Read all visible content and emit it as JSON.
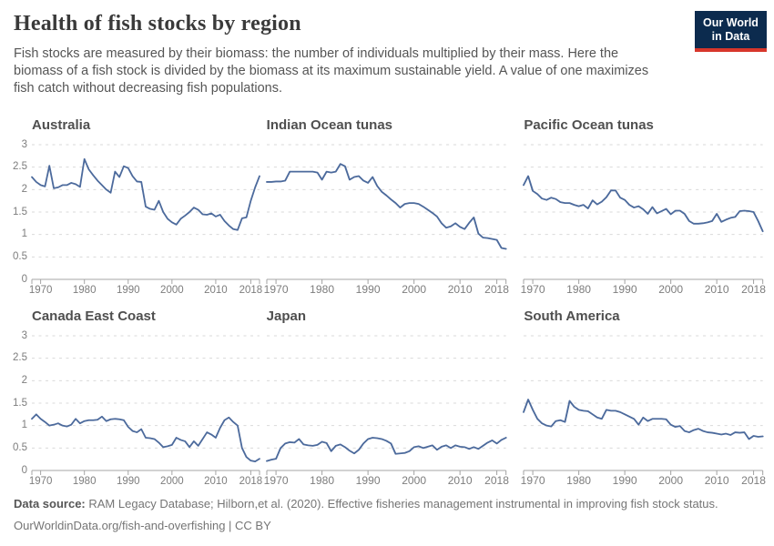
{
  "header": {
    "title": "Health of fish stocks by region",
    "subtitle": "Fish stocks are measured by their biomass: the number of individuals multiplied by their mass. Here the biomass of a fish stock is divided by the biomass at its maximum sustainable yield. A value of one maximizes fish catch without decreasing fish populations.",
    "logo": {
      "line1": "Our World",
      "line2": "in Data"
    }
  },
  "footer": {
    "source_label": "Data source:",
    "source_text": "RAM Legacy Database; Hilborn,et al. (2020). Effective fisheries management instrumental in improving fish stock status.",
    "link": "OurWorldinData.org/fish-and-overfishing",
    "license": "| CC BY"
  },
  "colors": {
    "line": "#4c6a9c",
    "grid": "#d9d9d9",
    "axis": "#a5a5a5",
    "tick_label": "#7d7d7d",
    "logo_bg": "#0c2b4e",
    "logo_accent": "#d7362b"
  },
  "chart_data": [
    {
      "type": "line",
      "title": "Australia",
      "x_start": 1968,
      "x_end": 2020,
      "x_step": 1,
      "xticks": [
        1970,
        1980,
        1990,
        2000,
        2010,
        2018
      ],
      "yticks": [
        0,
        0.5,
        1,
        1.5,
        2,
        2.5,
        3
      ],
      "ylim": [
        0,
        3
      ],
      "show_y_labels": true,
      "grid": true,
      "values": [
        2.28,
        2.17,
        2.1,
        2.07,
        2.53,
        2.03,
        2.05,
        2.1,
        2.1,
        2.15,
        2.12,
        2.06,
        2.68,
        2.45,
        2.32,
        2.2,
        2.1,
        2.0,
        1.93,
        2.4,
        2.28,
        2.52,
        2.48,
        2.3,
        2.18,
        2.17,
        1.62,
        1.57,
        1.55,
        1.75,
        1.5,
        1.35,
        1.27,
        1.22,
        1.35,
        1.42,
        1.5,
        1.6,
        1.55,
        1.45,
        1.44,
        1.47,
        1.4,
        1.44,
        1.3,
        1.2,
        1.12,
        1.1,
        1.36,
        1.38,
        1.75,
        2.05,
        2.3
      ]
    },
    {
      "type": "line",
      "title": "Indian Ocean tunas",
      "x_start": 1968,
      "x_end": 2020,
      "x_step": 1,
      "xticks": [
        1970,
        1980,
        1990,
        2000,
        2010,
        2018
      ],
      "yticks": [
        0,
        0.5,
        1,
        1.5,
        2,
        2.5,
        3
      ],
      "ylim": [
        0,
        3
      ],
      "show_y_labels": false,
      "grid": true,
      "values": [
        2.17,
        2.17,
        2.18,
        2.18,
        2.2,
        2.4,
        2.4,
        2.4,
        2.4,
        2.4,
        2.4,
        2.38,
        2.22,
        2.4,
        2.38,
        2.4,
        2.57,
        2.52,
        2.22,
        2.28,
        2.3,
        2.2,
        2.15,
        2.28,
        2.08,
        1.95,
        1.87,
        1.78,
        1.7,
        1.6,
        1.68,
        1.7,
        1.7,
        1.68,
        1.62,
        1.55,
        1.48,
        1.4,
        1.25,
        1.15,
        1.18,
        1.25,
        1.17,
        1.12,
        1.26,
        1.38,
        1.02,
        0.93,
        0.92,
        0.9,
        0.88,
        0.7,
        0.68
      ]
    },
    {
      "type": "line",
      "title": "Pacific Ocean tunas",
      "x_start": 1968,
      "x_end": 2020,
      "x_step": 1,
      "xticks": [
        1970,
        1980,
        1990,
        2000,
        2010,
        2018
      ],
      "yticks": [
        0,
        0.5,
        1,
        1.5,
        2,
        2.5,
        3
      ],
      "ylim": [
        0,
        3
      ],
      "show_y_labels": false,
      "grid": true,
      "values": [
        2.1,
        2.3,
        1.97,
        1.9,
        1.8,
        1.77,
        1.82,
        1.79,
        1.72,
        1.7,
        1.7,
        1.66,
        1.63,
        1.66,
        1.58,
        1.76,
        1.67,
        1.73,
        1.83,
        1.98,
        1.98,
        1.82,
        1.77,
        1.66,
        1.6,
        1.63,
        1.56,
        1.46,
        1.61,
        1.47,
        1.52,
        1.57,
        1.45,
        1.53,
        1.53,
        1.46,
        1.3,
        1.24,
        1.24,
        1.25,
        1.27,
        1.3,
        1.46,
        1.28,
        1.33,
        1.37,
        1.39,
        1.52,
        1.53,
        1.52,
        1.5,
        1.3,
        1.07
      ]
    },
    {
      "type": "line",
      "title": "Canada East Coast",
      "x_start": 1968,
      "x_end": 2020,
      "x_step": 1,
      "xticks": [
        1970,
        1980,
        1990,
        2000,
        2010,
        2018
      ],
      "yticks": [
        0,
        0.5,
        1,
        1.5,
        2,
        2.5,
        3
      ],
      "ylim": [
        0,
        3
      ],
      "show_y_labels": true,
      "grid": true,
      "values": [
        1.15,
        1.25,
        1.15,
        1.08,
        1.0,
        1.02,
        1.05,
        1.0,
        0.98,
        1.02,
        1.15,
        1.05,
        1.1,
        1.12,
        1.12,
        1.13,
        1.2,
        1.1,
        1.14,
        1.15,
        1.14,
        1.12,
        0.97,
        0.88,
        0.85,
        0.92,
        0.73,
        0.72,
        0.7,
        0.62,
        0.52,
        0.54,
        0.57,
        0.73,
        0.68,
        0.65,
        0.52,
        0.65,
        0.55,
        0.7,
        0.85,
        0.8,
        0.73,
        0.95,
        1.12,
        1.18,
        1.08,
        1.0,
        0.5,
        0.3,
        0.22,
        0.2,
        0.26
      ]
    },
    {
      "type": "line",
      "title": "Japan",
      "x_start": 1968,
      "x_end": 2020,
      "x_step": 1,
      "xticks": [
        1970,
        1980,
        1990,
        2000,
        2010,
        2018
      ],
      "yticks": [
        0,
        0.5,
        1,
        1.5,
        2,
        2.5,
        3
      ],
      "ylim": [
        0,
        3
      ],
      "show_y_labels": false,
      "grid": true,
      "values": [
        0.21,
        0.24,
        0.26,
        0.5,
        0.6,
        0.63,
        0.62,
        0.7,
        0.58,
        0.56,
        0.55,
        0.57,
        0.64,
        0.61,
        0.43,
        0.55,
        0.58,
        0.52,
        0.44,
        0.38,
        0.46,
        0.6,
        0.7,
        0.73,
        0.72,
        0.7,
        0.66,
        0.6,
        0.37,
        0.38,
        0.39,
        0.43,
        0.52,
        0.54,
        0.5,
        0.53,
        0.56,
        0.46,
        0.53,
        0.56,
        0.5,
        0.56,
        0.53,
        0.52,
        0.48,
        0.52,
        0.48,
        0.55,
        0.62,
        0.67,
        0.6,
        0.68,
        0.73
      ]
    },
    {
      "type": "line",
      "title": "South America",
      "x_start": 1968,
      "x_end": 2020,
      "x_step": 1,
      "xticks": [
        1970,
        1980,
        1990,
        2000,
        2010,
        2018
      ],
      "yticks": [
        0,
        0.5,
        1,
        1.5,
        2,
        2.5,
        3
      ],
      "ylim": [
        0,
        3
      ],
      "show_y_labels": false,
      "grid": true,
      "values": [
        1.3,
        1.58,
        1.35,
        1.15,
        1.05,
        1.0,
        0.98,
        1.1,
        1.12,
        1.08,
        1.55,
        1.42,
        1.35,
        1.33,
        1.32,
        1.25,
        1.18,
        1.15,
        1.35,
        1.33,
        1.33,
        1.3,
        1.25,
        1.2,
        1.15,
        1.02,
        1.18,
        1.1,
        1.15,
        1.15,
        1.15,
        1.14,
        1.02,
        0.97,
        0.99,
        0.88,
        0.85,
        0.9,
        0.93,
        0.88,
        0.85,
        0.84,
        0.82,
        0.8,
        0.82,
        0.79,
        0.85,
        0.84,
        0.85,
        0.7,
        0.77,
        0.75,
        0.76
      ]
    }
  ]
}
